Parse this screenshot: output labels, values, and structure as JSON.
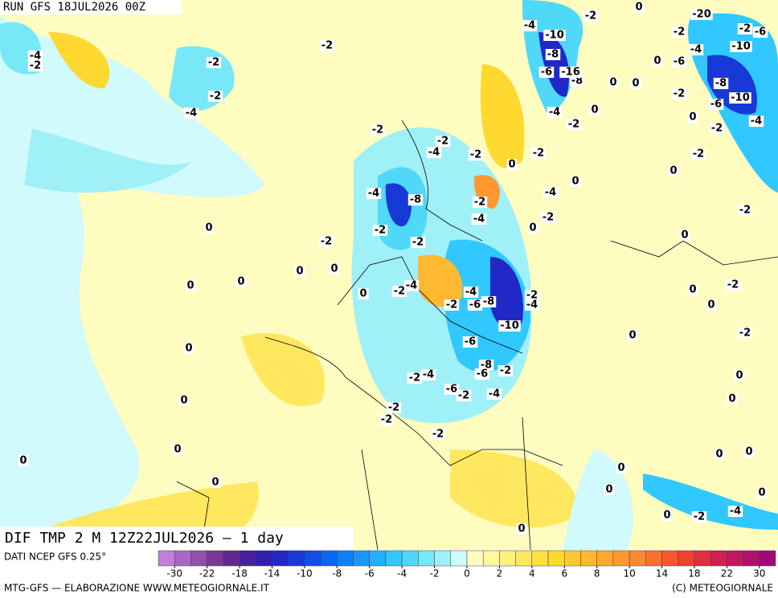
{
  "header": {
    "run": "RUN GFS 18JUL2026 00Z"
  },
  "map": {
    "title": "DIF TMP 2 M 12Z22JUL2026 — 1 day",
    "labels": [
      -2,
      -2,
      -2,
      -4,
      -4,
      -2,
      -2,
      -2,
      -4,
      -2,
      -4,
      -8,
      -2,
      -4,
      0,
      -2,
      -2,
      -2,
      0,
      0,
      0,
      0,
      -2,
      -4,
      0,
      -2,
      -4,
      -6,
      -8,
      -10,
      -6,
      -2,
      -4,
      -8,
      -6,
      -2,
      -2,
      -4,
      -6,
      -2,
      -4,
      -2,
      -2,
      -2,
      0,
      0,
      0,
      0,
      0,
      0,
      0,
      0,
      0,
      -2,
      -4,
      0,
      0,
      0,
      0,
      0,
      -2,
      0,
      0,
      -2,
      0,
      0,
      -2,
      0,
      -2,
      -2,
      0,
      -4,
      -6,
      -10,
      -8,
      -2,
      0,
      0,
      -8,
      -16,
      -6,
      -10,
      -4,
      -8,
      -2,
      0,
      -20,
      -2,
      -4,
      -6,
      0,
      -2,
      -6,
      -10,
      -4,
      -2,
      0,
      0,
      -2,
      0,
      -4,
      -2,
      0
    ]
  },
  "legend": {
    "source": "DATI NCEP GFS 0.25°",
    "colors": [
      "#c080d8",
      "#a868c8",
      "#9050b0",
      "#783898",
      "#602890",
      "#4820a0",
      "#3020b0",
      "#2028c8",
      "#1838d8",
      "#1050e8",
      "#0868f0",
      "#1080f8",
      "#1898ff",
      "#20b0ff",
      "#30c8ff",
      "#50d8f8",
      "#78e8f8",
      "#a0f0f8",
      "#d0fafc",
      "#fffcc0",
      "#fff8a0",
      "#fff080",
      "#ffe860",
      "#ffe040",
      "#ffd830",
      "#ffc830",
      "#ffb830",
      "#ffa830",
      "#ff9830",
      "#ff8830",
      "#ff7030",
      "#f85830",
      "#f04030",
      "#e03040",
      "#d02050",
      "#c01860",
      "#b01070",
      "#a00878"
    ],
    "ticks": [
      -30,
      -22,
      -18,
      -14,
      -10,
      -8,
      -6,
      -4,
      -2,
      0,
      2,
      4,
      6,
      8,
      10,
      14,
      18,
      22,
      30
    ]
  },
  "footer": {
    "left": "MTG-GFS — ELABORAZIONE WWW.METEOGIORNALE.IT",
    "right": "(C) METEOGIORNALE"
  }
}
